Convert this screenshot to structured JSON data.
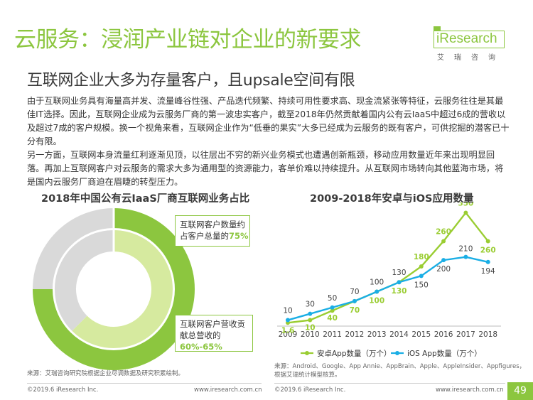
{
  "header": {
    "title": "云服务：浸润产业链对企业的新要求",
    "subtitle": "互联网企业大多为存量客户，且upsale空间有限",
    "logo": {
      "brand": "iResearch",
      "sub": "艾瑞咨询"
    }
  },
  "body": {
    "para1": "由于互联网业务具有海量高并发、流量峰谷性强、产品迭代频繁、持续可用性要求高、现金流紧张等特征，云服务往往是其最佳IT选择。因此，互联网企业成为云服务厂商的第一波忠实客户，截至2018年仍然贡献着国内公有云IaaS中超过6成的营收以及超过7成的客户规模。换一个视角来看，互联网企业作为“低垂的果实”大多已经成为云服务的既有客户，可供挖掘的潜客已十分有限。",
    "para2": "另一方面，互联网本身流量红利逐渐见顶，以往层出不穷的新兴业务模式也遭遇创新瓶颈，移动应用数量近年来出现明显回落。再加上互联网客户对云服务的需求大多为通用型的资源能力，客单价难以持续提升。从互联网市场转向其他蓝海市场，将是国内云服务厂商迫在眉睫的转型压力。"
  },
  "left_panel": {
    "title": "2018年中国公有云IaaS厂商互联网业务占比",
    "box_customers": {
      "text1": "互联网客户数量约",
      "text2": "占客户总量的",
      "pct": "75%"
    },
    "box_revenue": {
      "text1": "互联网客户营收贡",
      "text2": "献总营收的",
      "pct": "60%-65%"
    },
    "source": "来源：艾瑞咨询研究院根据企业尽调数据及研究积累绘制。",
    "footer_copy": "©2019.6 iResearch Inc.",
    "footer_url": "www.iresearch.com.cn"
  },
  "right_panel": {
    "title": "2009-2018年安卓与iOS应用数量",
    "source_line1": "来源：Android、Google、App Annie、AppBrain、Apple、AppleInsider、Appfigures，",
    "source_line2": "根据艾瑞统计模型核算。",
    "footer_copy": "©2019.6 iResearch Inc.",
    "footer_url": "www.iresearch.com.cn",
    "page_number": "49"
  },
  "chart_data": [
    {
      "type": "pie",
      "title": "2018年中国公有云IaaS厂商互联网业务占比",
      "rings": [
        {
          "name": "互联网客户数量约占客户总量的",
          "value_pct": 75,
          "label": "75%"
        },
        {
          "name": "互联网客户营收贡献总营收的",
          "value_pct": 62.5,
          "label": "60%-65%"
        }
      ],
      "colors": {
        "outer": "#8cc63f",
        "inner": "#d6ea9f",
        "rest": "#d9d9d9"
      }
    },
    {
      "type": "line",
      "title": "2009-2018年安卓与iOS应用数量",
      "x": [
        "2009",
        "2010",
        "2011",
        "2012",
        "2013",
        "2014",
        "2015",
        "2016",
        "2017",
        "2018"
      ],
      "series": [
        {
          "name": "安卓App数量（万个）",
          "color": "#9acd32",
          "values": [
            1.6,
            10,
            40,
            70,
            100,
            130,
            180,
            260,
            350,
            260
          ]
        },
        {
          "name": "iOS App数量（万个）",
          "color": "#1aaee5",
          "values": [
            10,
            30,
            50,
            70,
            100,
            130,
            150,
            200,
            210,
            194
          ]
        }
      ],
      "ylim": [
        0,
        360
      ],
      "legend_position": "bottom"
    }
  ]
}
